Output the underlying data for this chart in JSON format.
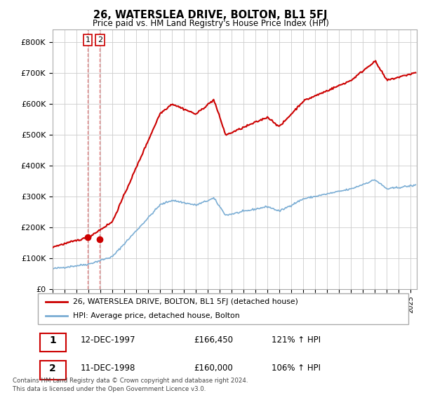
{
  "title": "26, WATERSLEA DRIVE, BOLTON, BL1 5FJ",
  "subtitle": "Price paid vs. HM Land Registry's House Price Index (HPI)",
  "property_label": "26, WATERSLEA DRIVE, BOLTON, BL1 5FJ (detached house)",
  "hpi_label": "HPI: Average price, detached house, Bolton",
  "ylabel_ticks": [
    "£0",
    "£100K",
    "£200K",
    "£300K",
    "£400K",
    "£500K",
    "£600K",
    "£700K",
    "£800K"
  ],
  "ytick_values": [
    0,
    100000,
    200000,
    300000,
    400000,
    500000,
    600000,
    700000,
    800000
  ],
  "ylim": [
    0,
    840000
  ],
  "xlim_start": 1995.0,
  "xlim_end": 2025.5,
  "sale1_date": 1997.95,
  "sale1_price": 166450,
  "sale2_date": 1998.95,
  "sale2_price": 160000,
  "table_rows": [
    {
      "num": "1",
      "date": "12-DEC-1997",
      "price": "£166,450",
      "hpi": "121% ↑ HPI"
    },
    {
      "num": "2",
      "date": "11-DEC-1998",
      "price": "£160,000",
      "hpi": "106% ↑ HPI"
    }
  ],
  "footer": "Contains HM Land Registry data © Crown copyright and database right 2024.\nThis data is licensed under the Open Government Licence v3.0.",
  "property_color": "#cc0000",
  "hpi_color": "#7aadd4",
  "background_color": "#ffffff",
  "grid_color": "#cccccc",
  "vline_color": "#e08080"
}
